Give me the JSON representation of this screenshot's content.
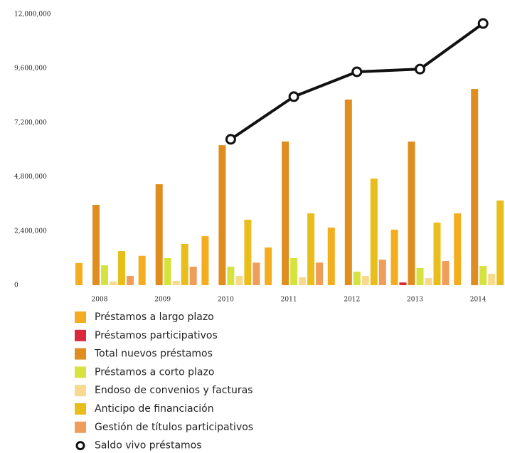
{
  "chart_data": {
    "type": "bar",
    "categories": [
      "2008",
      "2009",
      "2010",
      "2011",
      "2012",
      "2013",
      "2014"
    ],
    "series": [
      {
        "name": "Préstamos a largo plazo",
        "color": "#f3ad1f",
        "values": [
          980000,
          1300000,
          2170000,
          1670000,
          2550000,
          2460000,
          3180000
        ]
      },
      {
        "name": "Préstamos participativos",
        "color": "#d9273b",
        "values": [
          null,
          null,
          null,
          null,
          null,
          120000,
          null
        ]
      },
      {
        "name": "Total nuevos préstamos",
        "color": "#df8d1e",
        "values": [
          3560000,
          4470000,
          6200000,
          6360000,
          8220000,
          6360000,
          8690000
        ]
      },
      {
        "name": "Préstamos a corto plazo",
        "color": "#d6e33f",
        "values": [
          880000,
          1200000,
          820000,
          1200000,
          600000,
          760000,
          850000
        ]
      },
      {
        "name": "Endoso de convenios y facturas",
        "color": "#f9d88f",
        "values": [
          160000,
          190000,
          410000,
          350000,
          410000,
          310000,
          500000
        ]
      },
      {
        "name": "Anticipo de financiación",
        "color": "#e8bd1c",
        "values": [
          1510000,
          1830000,
          2900000,
          3180000,
          4720000,
          2770000,
          3750000
        ]
      },
      {
        "name": "Gestión de títulos participativos",
        "color": "#ef9d5a",
        "values": [
          410000,
          820000,
          1000000,
          1000000,
          1130000,
          1070000,
          1000000
        ]
      },
      {
        "name": "Saldo vivo préstamos",
        "type": "line",
        "color": "#111111",
        "values": [
          null,
          null,
          6460000,
          8350000,
          9450000,
          9570000,
          11590000
        ]
      }
    ],
    "ylim": [
      0,
      12000000
    ],
    "yticks": [
      0,
      {
        "value": 2400000,
        "label": "2,400,000"
      },
      {
        "value": 4800000,
        "label": "4,800,000"
      },
      {
        "value": 7200000,
        "label": "7,200,000"
      },
      {
        "value": 9600000,
        "label": "9,600,000"
      },
      {
        "value": 12000000,
        "label": "12,000,000"
      }
    ],
    "grid": false
  }
}
